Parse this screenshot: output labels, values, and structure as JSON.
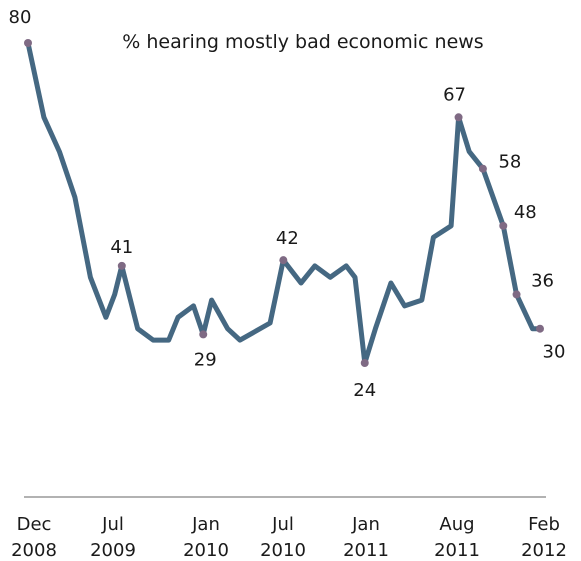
{
  "chart_data": {
    "type": "line",
    "title": "% hearing mostly bad economic news",
    "xlabel": "",
    "ylabel": "",
    "ylim": [
      0,
      85
    ],
    "grid": false,
    "legend": "none",
    "colors": {
      "line": "#456882",
      "marker": "#7f6a84",
      "axis": "#999999"
    },
    "x_ticks": [
      {
        "lines": [
          "Dec",
          "2008"
        ],
        "x": "2008-12-01"
      },
      {
        "lines": [
          "Jul",
          "2009"
        ],
        "x": "2009-07-01"
      },
      {
        "lines": [
          "Jan",
          "2010"
        ],
        "x": "2010-01-01"
      },
      {
        "lines": [
          "Jul",
          "2010"
        ],
        "x": "2010-07-01"
      },
      {
        "lines": [
          "Jan",
          "2011"
        ],
        "x": "2011-01-01"
      },
      {
        "lines": [
          "Aug",
          "2011"
        ],
        "x": "2011-08-01"
      },
      {
        "lines": [
          "Feb",
          "2012"
        ],
        "x": "2012-02-01"
      }
    ],
    "series": [
      {
        "points": [
          {
            "x": "2008-12-01",
            "y": 80,
            "label": "80"
          },
          {
            "x": "2009-01-06",
            "y": 67
          },
          {
            "x": "2009-02-10",
            "y": 61
          },
          {
            "x": "2009-03-17",
            "y": 53
          },
          {
            "x": "2009-04-21",
            "y": 39
          },
          {
            "x": "2009-05-26",
            "y": 32
          },
          {
            "x": "2009-06-15",
            "y": 36
          },
          {
            "x": "2009-07-01",
            "y": 41,
            "label": "41"
          },
          {
            "x": "2009-08-06",
            "y": 30
          },
          {
            "x": "2009-09-10",
            "y": 28
          },
          {
            "x": "2009-10-15",
            "y": 28
          },
          {
            "x": "2009-11-05",
            "y": 32
          },
          {
            "x": "2009-12-10",
            "y": 34
          },
          {
            "x": "2010-01-01",
            "y": 29,
            "label": "29"
          },
          {
            "x": "2010-01-20",
            "y": 35
          },
          {
            "x": "2010-02-25",
            "y": 30
          },
          {
            "x": "2010-03-25",
            "y": 28
          },
          {
            "x": "2010-06-01",
            "y": 31
          },
          {
            "x": "2010-07-01",
            "y": 42,
            "label": "42"
          },
          {
            "x": "2010-08-10",
            "y": 38
          },
          {
            "x": "2010-09-10",
            "y": 41
          },
          {
            "x": "2010-10-15",
            "y": 39
          },
          {
            "x": "2010-11-20",
            "y": 41
          },
          {
            "x": "2010-12-10",
            "y": 39
          },
          {
            "x": "2011-01-01",
            "y": 24,
            "label": "24"
          },
          {
            "x": "2011-01-25",
            "y": 30
          },
          {
            "x": "2011-03-01",
            "y": 38
          },
          {
            "x": "2011-04-01",
            "y": 34
          },
          {
            "x": "2011-05-10",
            "y": 35
          },
          {
            "x": "2011-06-05",
            "y": 46
          },
          {
            "x": "2011-07-15",
            "y": 48
          },
          {
            "x": "2011-08-01",
            "y": 67,
            "label": "67"
          },
          {
            "x": "2011-08-25",
            "y": 61
          },
          {
            "x": "2011-09-25",
            "y": 58,
            "label": "58"
          },
          {
            "x": "2011-11-10",
            "y": 48,
            "label": "48"
          },
          {
            "x": "2011-12-10",
            "y": 36,
            "label": "36"
          },
          {
            "x": "2012-01-15",
            "y": 30
          },
          {
            "x": "2012-02-01",
            "y": 30,
            "label": "30"
          }
        ]
      }
    ]
  }
}
